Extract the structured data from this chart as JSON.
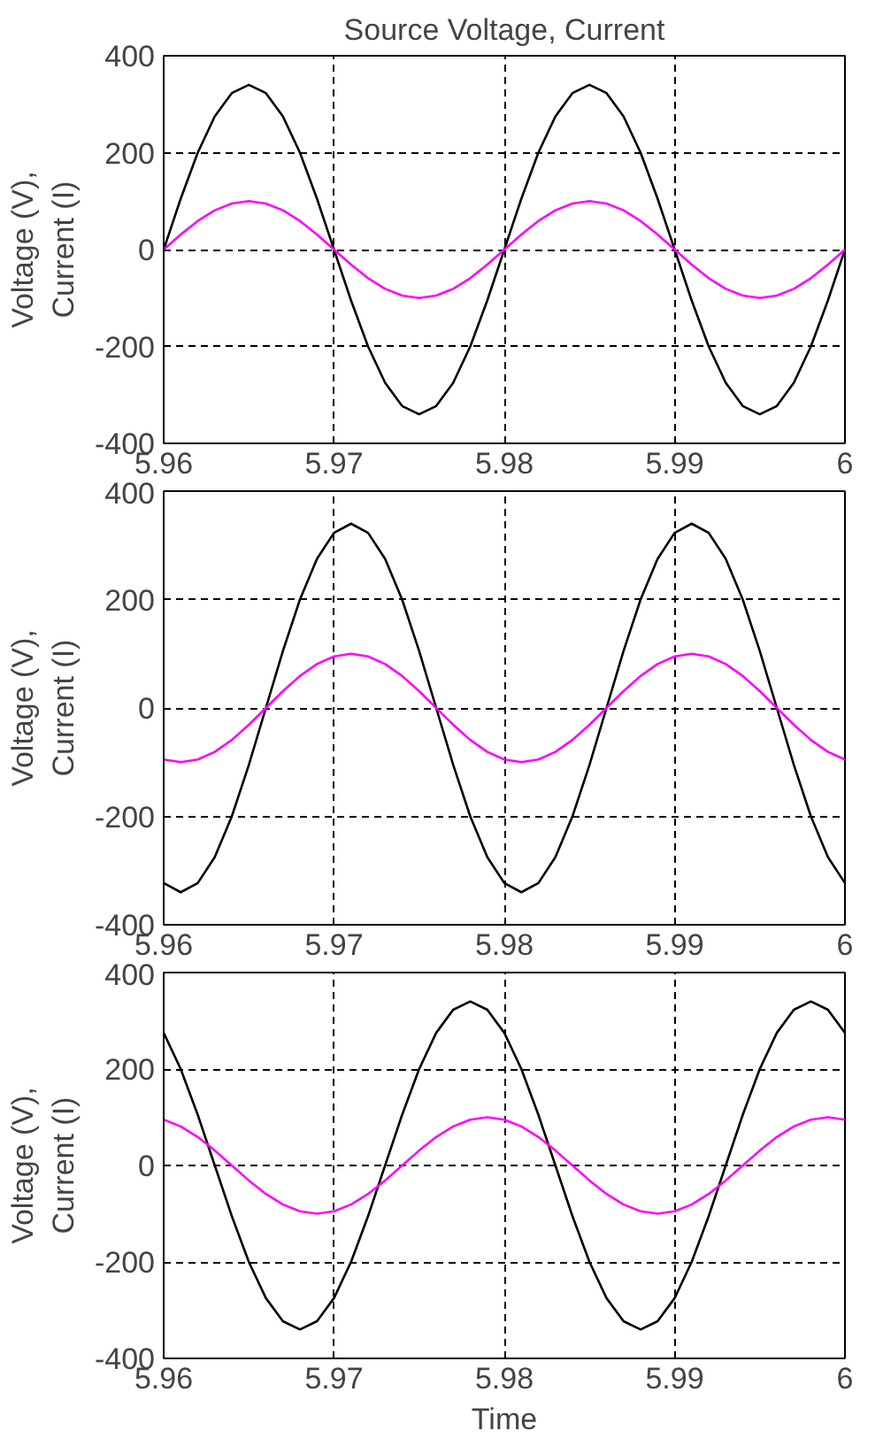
{
  "chart_data": [
    {
      "type": "line",
      "title": "Source Voltage, Current",
      "ylabel": "Voltage (V),\nCurrent (I)",
      "x": [
        5.96,
        5.961,
        5.962,
        5.963,
        5.964,
        5.965,
        5.966,
        5.967,
        5.968,
        5.969,
        5.97,
        5.971,
        5.972,
        5.973,
        5.974,
        5.975,
        5.976,
        5.977,
        5.978,
        5.979,
        5.98,
        5.981,
        5.982,
        5.983,
        5.984,
        5.985,
        5.986,
        5.987,
        5.988,
        5.989,
        5.99,
        5.991,
        5.992,
        5.993,
        5.994,
        5.995,
        5.996,
        5.997,
        5.998,
        5.999,
        6.0
      ],
      "series": [
        {
          "color": "#000000",
          "values": [
            0,
            105,
            200,
            275,
            323,
            340,
            323,
            275,
            200,
            105,
            0,
            -105,
            -200,
            -275,
            -323,
            -340,
            -323,
            -275,
            -200,
            -105,
            0,
            105,
            200,
            275,
            323,
            340,
            323,
            275,
            200,
            105,
            0,
            -105,
            -200,
            -275,
            -323,
            -340,
            -323,
            -275,
            -200,
            -105,
            0
          ]
        },
        {
          "color": "#ff00ff",
          "values": [
            0,
            31,
            59,
            81,
            95,
            100,
            95,
            81,
            59,
            31,
            0,
            -31,
            -59,
            -81,
            -95,
            -100,
            -95,
            -81,
            -59,
            -31,
            0,
            31,
            59,
            81,
            95,
            100,
            95,
            81,
            59,
            31,
            0,
            -31,
            -59,
            -81,
            -95,
            -100,
            -95,
            -81,
            -59,
            -31,
            0
          ]
        }
      ],
      "xlim": [
        5.96,
        6
      ],
      "ylim": [
        -400,
        400
      ],
      "xticks": [
        5.96,
        5.97,
        5.98,
        5.99,
        6
      ],
      "yticks": [
        -400,
        -200,
        0,
        200,
        400
      ],
      "grid": true
    },
    {
      "type": "line",
      "ylabel": "Voltage (V),\nCurrent (I)",
      "x": [
        5.96,
        5.961,
        5.962,
        5.963,
        5.964,
        5.965,
        5.966,
        5.967,
        5.968,
        5.969,
        5.97,
        5.971,
        5.972,
        5.973,
        5.974,
        5.975,
        5.976,
        5.977,
        5.978,
        5.979,
        5.98,
        5.981,
        5.982,
        5.983,
        5.984,
        5.985,
        5.986,
        5.987,
        5.988,
        5.989,
        5.99,
        5.991,
        5.992,
        5.993,
        5.994,
        5.995,
        5.996,
        5.997,
        5.998,
        5.999,
        6.0
      ],
      "series": [
        {
          "color": "#000000",
          "values": [
            -323,
            -340,
            -323,
            -275,
            -200,
            -105,
            0,
            105,
            200,
            275,
            323,
            340,
            323,
            275,
            200,
            105,
            0,
            -105,
            -200,
            -275,
            -323,
            -340,
            -323,
            -275,
            -200,
            -105,
            0,
            105,
            200,
            275,
            323,
            340,
            323,
            275,
            200,
            105,
            0,
            -105,
            -200,
            -275,
            -323
          ]
        },
        {
          "color": "#ff00ff",
          "values": [
            -95,
            -100,
            -95,
            -81,
            -59,
            -31,
            0,
            31,
            59,
            81,
            95,
            100,
            95,
            81,
            59,
            31,
            0,
            -31,
            -59,
            -81,
            -95,
            -100,
            -95,
            -81,
            -59,
            -31,
            0,
            31,
            59,
            81,
            95,
            100,
            95,
            81,
            59,
            31,
            0,
            -31,
            -59,
            -81,
            -95
          ]
        }
      ],
      "xlim": [
        5.96,
        6
      ],
      "ylim": [
        -400,
        400
      ],
      "xticks": [
        5.96,
        5.97,
        5.98,
        5.99,
        6
      ],
      "yticks": [
        -400,
        -200,
        0,
        200,
        400
      ],
      "grid": true
    },
    {
      "type": "line",
      "xlabel": "Time",
      "ylabel": "Voltage (V),\nCurrent (I)",
      "x": [
        5.96,
        5.961,
        5.962,
        5.963,
        5.964,
        5.965,
        5.966,
        5.967,
        5.968,
        5.969,
        5.97,
        5.971,
        5.972,
        5.973,
        5.974,
        5.975,
        5.976,
        5.977,
        5.978,
        5.979,
        5.98,
        5.981,
        5.982,
        5.983,
        5.984,
        5.985,
        5.986,
        5.987,
        5.988,
        5.989,
        5.99,
        5.991,
        5.992,
        5.993,
        5.994,
        5.995,
        5.996,
        5.997,
        5.998,
        5.999,
        6.0
      ],
      "series": [
        {
          "color": "#000000",
          "values": [
            275,
            200,
            105,
            0,
            -105,
            -200,
            -275,
            -323,
            -340,
            -323,
            -275,
            -200,
            -105,
            0,
            105,
            200,
            275,
            323,
            340,
            323,
            275,
            200,
            105,
            0,
            -105,
            -200,
            -275,
            -323,
            -340,
            -323,
            -275,
            -200,
            -105,
            0,
            105,
            200,
            275,
            323,
            340,
            323,
            275
          ]
        },
        {
          "color": "#ff00ff",
          "values": [
            95,
            81,
            59,
            31,
            0,
            -31,
            -59,
            -81,
            -95,
            -100,
            -95,
            -81,
            -59,
            -31,
            0,
            31,
            59,
            81,
            95,
            100,
            95,
            81,
            59,
            31,
            0,
            -31,
            -59,
            -81,
            -95,
            -100,
            -95,
            -81,
            -59,
            -31,
            0,
            31,
            59,
            81,
            95,
            100,
            95
          ]
        }
      ],
      "xlim": [
        5.96,
        6
      ],
      "ylim": [
        -400,
        400
      ],
      "xticks": [
        5.96,
        5.97,
        5.98,
        5.99,
        6
      ],
      "yticks": [
        -400,
        -200,
        0,
        200,
        400
      ],
      "grid": true
    }
  ]
}
